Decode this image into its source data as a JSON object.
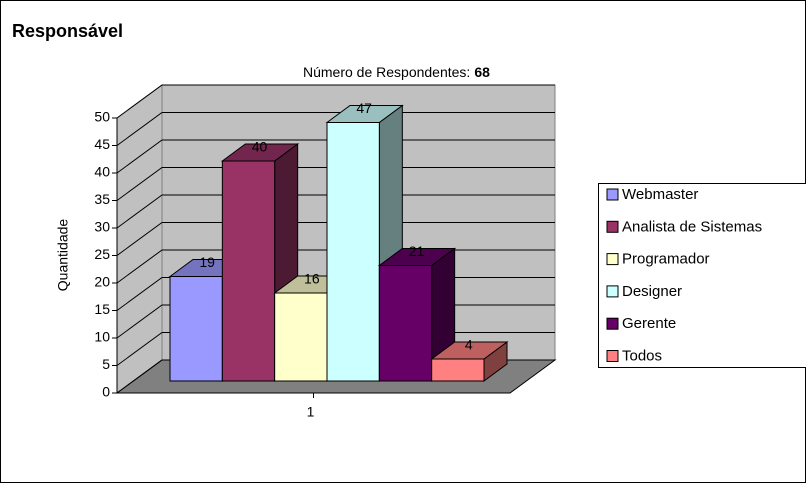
{
  "chart_data": {
    "type": "bar3d",
    "title": "Responsável",
    "annotation": {
      "label": "Número de Respondentes:",
      "value": 68
    },
    "y_label": "Quantidade",
    "categories": [
      "1"
    ],
    "series": [
      {
        "name": "Webmaster",
        "color": "#9999ff",
        "values": [
          19
        ]
      },
      {
        "name": "Analista de Sistemas",
        "color": "#993366",
        "values": [
          40
        ]
      },
      {
        "name": "Programador",
        "color": "#ffffcc",
        "values": [
          16
        ]
      },
      {
        "name": "Designer",
        "color": "#ccffff",
        "values": [
          47
        ]
      },
      {
        "name": "Gerente",
        "color": "#660066",
        "values": [
          21
        ]
      },
      {
        "name": "Todos",
        "color": "#ff8080",
        "values": [
          4
        ]
      }
    ],
    "ylim": [
      0,
      50
    ],
    "yticks": [
      0,
      5,
      10,
      15,
      20,
      25,
      30,
      35,
      40,
      45,
      50
    ],
    "grid": true,
    "legend": "right"
  }
}
